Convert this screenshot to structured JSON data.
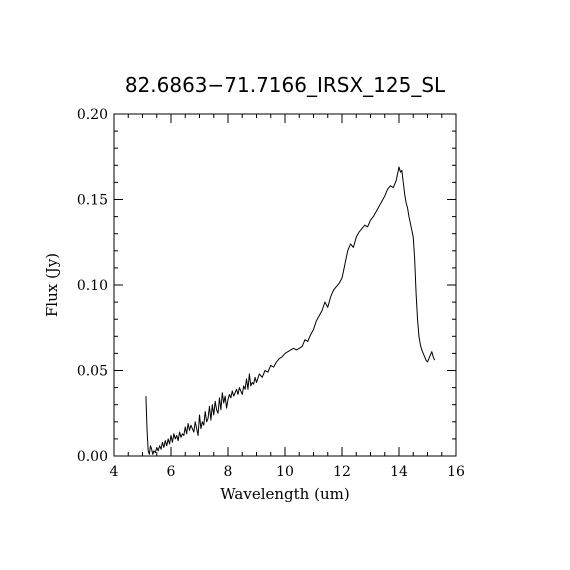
{
  "chart_data": {
    "type": "line",
    "title": "82.6863−71.7166_IRSX_125_SL",
    "xlabel": "Wavelength (um)",
    "ylabel": "Flux (Jy)",
    "xlim": [
      4,
      16
    ],
    "ylim": [
      0,
      0.2
    ],
    "x_ticks": [
      4,
      6,
      8,
      10,
      12,
      14,
      16
    ],
    "x_tick_labels": [
      "4",
      "6",
      "8",
      "10",
      "12",
      "14",
      "16"
    ],
    "y_ticks": [
      0,
      0.05,
      0.1,
      0.15,
      0.2
    ],
    "y_tick_labels": [
      "0.00",
      "0.05",
      "0.10",
      "0.15",
      "0.20"
    ],
    "grid": false,
    "series": [
      {
        "color": "#000000",
        "x": [
          5.12,
          5.16,
          5.2,
          5.24,
          5.28,
          5.32,
          5.36,
          5.4,
          5.45,
          5.5,
          5.55,
          5.6,
          5.65,
          5.7,
          5.75,
          5.8,
          5.85,
          5.9,
          5.95,
          6.0,
          6.05,
          6.1,
          6.15,
          6.2,
          6.25,
          6.3,
          6.35,
          6.4,
          6.45,
          6.5,
          6.55,
          6.6,
          6.65,
          6.7,
          6.75,
          6.8,
          6.85,
          6.9,
          6.95,
          7.0,
          7.05,
          7.1,
          7.15,
          7.2,
          7.25,
          7.3,
          7.35,
          7.4,
          7.45,
          7.5,
          7.55,
          7.6,
          7.65,
          7.7,
          7.75,
          7.8,
          7.85,
          7.9,
          7.95,
          8.0,
          8.05,
          8.1,
          8.15,
          8.2,
          8.25,
          8.3,
          8.35,
          8.4,
          8.45,
          8.5,
          8.55,
          8.6,
          8.65,
          8.7,
          8.75,
          8.8,
          8.85,
          8.9,
          8.95,
          9.0,
          9.1,
          9.2,
          9.3,
          9.4,
          9.5,
          9.6,
          9.7,
          9.8,
          9.9,
          10.0,
          10.1,
          10.2,
          10.3,
          10.4,
          10.5,
          10.6,
          10.7,
          10.8,
          10.9,
          11.0,
          11.1,
          11.2,
          11.3,
          11.4,
          11.5,
          11.6,
          11.7,
          11.8,
          11.9,
          12.0,
          12.1,
          12.2,
          12.3,
          12.4,
          12.5,
          12.6,
          12.7,
          12.8,
          12.9,
          13.0,
          13.1,
          13.2,
          13.3,
          13.4,
          13.5,
          13.6,
          13.7,
          13.8,
          13.9,
          14.0,
          14.05,
          14.1,
          14.15,
          14.2,
          14.25,
          14.3,
          14.35,
          14.4,
          14.45,
          14.5,
          14.55,
          14.6,
          14.65,
          14.7,
          14.75,
          14.8,
          14.85,
          14.9,
          14.95,
          15.0,
          15.05,
          15.1,
          15.15,
          15.2,
          15.25
        ],
        "y": [
          0.035,
          0.015,
          0.003,
          0.001,
          0.006,
          0.004,
          0.001,
          0.003,
          0.002,
          0.005,
          0.003,
          0.006,
          0.004,
          0.008,
          0.005,
          0.009,
          0.006,
          0.01,
          0.007,
          0.012,
          0.008,
          0.013,
          0.01,
          0.012,
          0.009,
          0.014,
          0.011,
          0.013,
          0.012,
          0.017,
          0.013,
          0.019,
          0.015,
          0.018,
          0.016,
          0.014,
          0.02,
          0.016,
          0.012,
          0.024,
          0.016,
          0.02,
          0.018,
          0.026,
          0.02,
          0.022,
          0.029,
          0.021,
          0.03,
          0.024,
          0.032,
          0.027,
          0.025,
          0.034,
          0.027,
          0.037,
          0.031,
          0.035,
          0.028,
          0.033,
          0.036,
          0.034,
          0.038,
          0.035,
          0.037,
          0.039,
          0.036,
          0.04,
          0.038,
          0.036,
          0.041,
          0.039,
          0.045,
          0.039,
          0.048,
          0.041,
          0.043,
          0.042,
          0.046,
          0.043,
          0.048,
          0.046,
          0.05,
          0.049,
          0.053,
          0.052,
          0.055,
          0.057,
          0.058,
          0.06,
          0.061,
          0.062,
          0.063,
          0.062,
          0.063,
          0.064,
          0.068,
          0.067,
          0.071,
          0.074,
          0.079,
          0.082,
          0.085,
          0.09,
          0.087,
          0.093,
          0.097,
          0.099,
          0.101,
          0.104,
          0.112,
          0.12,
          0.124,
          0.122,
          0.128,
          0.131,
          0.133,
          0.135,
          0.134,
          0.138,
          0.14,
          0.143,
          0.146,
          0.149,
          0.152,
          0.156,
          0.158,
          0.157,
          0.161,
          0.169,
          0.166,
          0.167,
          0.16,
          0.153,
          0.148,
          0.145,
          0.14,
          0.136,
          0.132,
          0.128,
          0.115,
          0.095,
          0.08,
          0.07,
          0.065,
          0.062,
          0.06,
          0.058,
          0.056,
          0.055,
          0.057,
          0.059,
          0.061,
          0.058,
          0.056
        ]
      }
    ]
  }
}
